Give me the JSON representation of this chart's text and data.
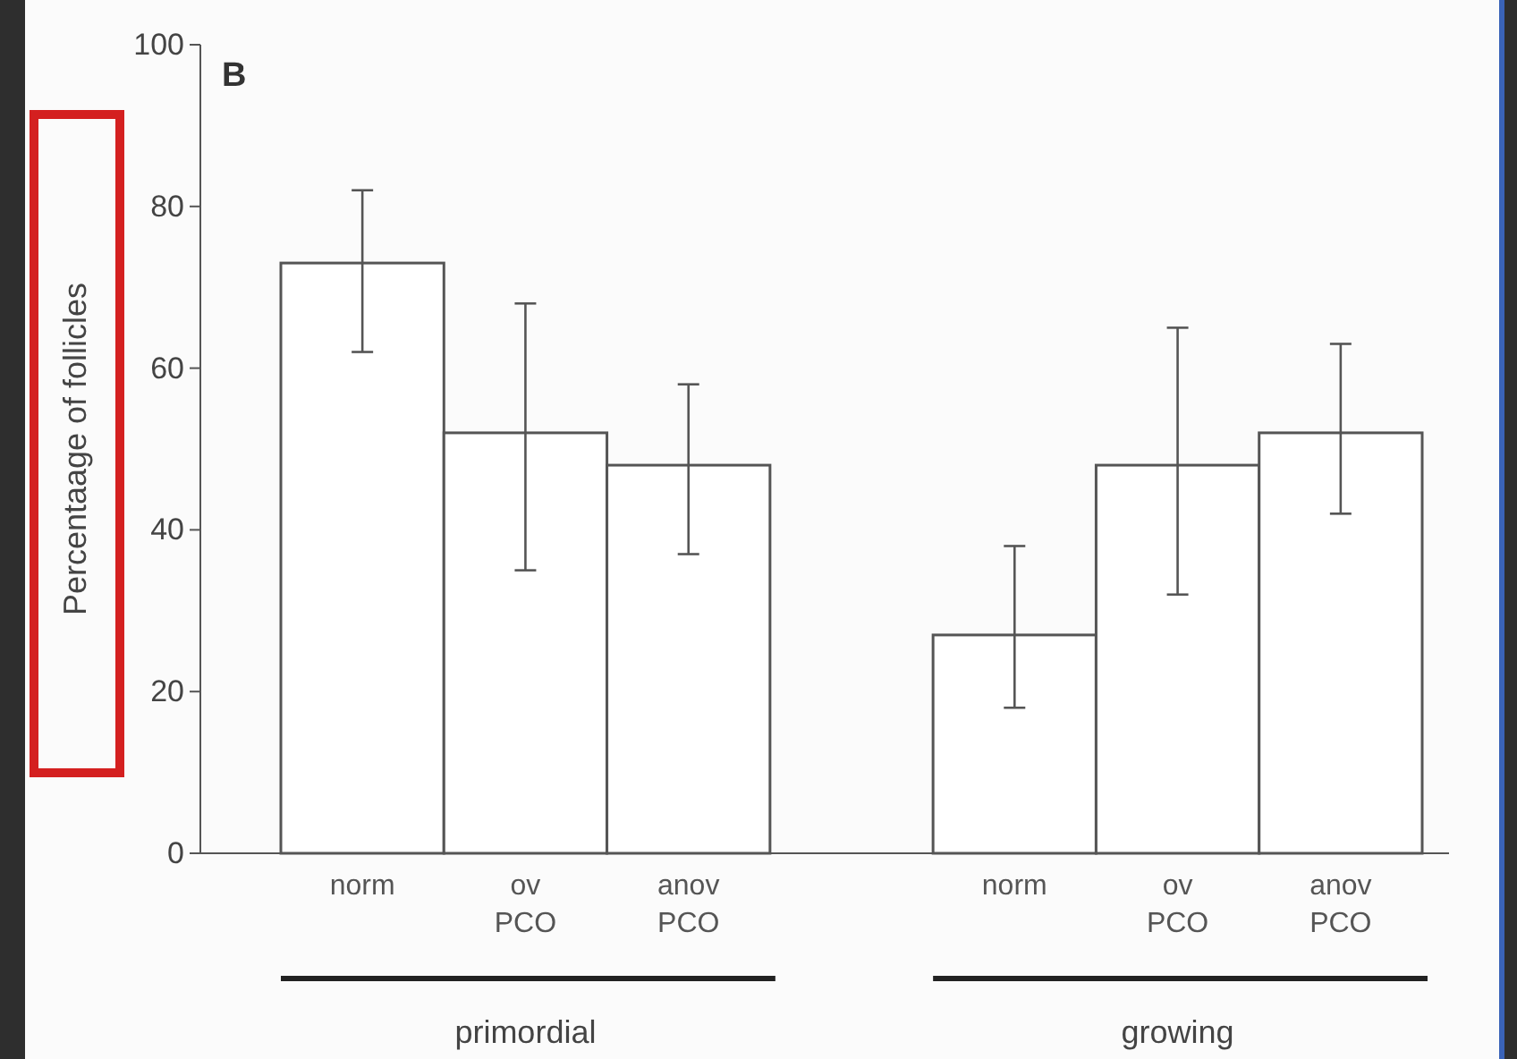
{
  "chart_data": {
    "type": "bar",
    "ylabel": "Percentaage of follicles",
    "categories": [
      "norm",
      "ov PCO",
      "anov PCO",
      null,
      "norm",
      "ov PCO",
      "anov PCO"
    ],
    "values": [
      73,
      52,
      48,
      null,
      27,
      48,
      52
    ],
    "errors": [
      [
        62,
        82
      ],
      [
        35,
        68
      ],
      [
        37,
        58
      ],
      null,
      [
        18,
        38
      ],
      [
        32,
        65
      ],
      [
        42,
        63
      ]
    ],
    "color": "#ffffff",
    "ylim": [
      0,
      100
    ],
    "yticks": [
      0,
      20,
      40,
      60,
      80,
      100
    ],
    "grid": false,
    "annotations": [
      "B",
      "primordial",
      "growing"
    ]
  }
}
